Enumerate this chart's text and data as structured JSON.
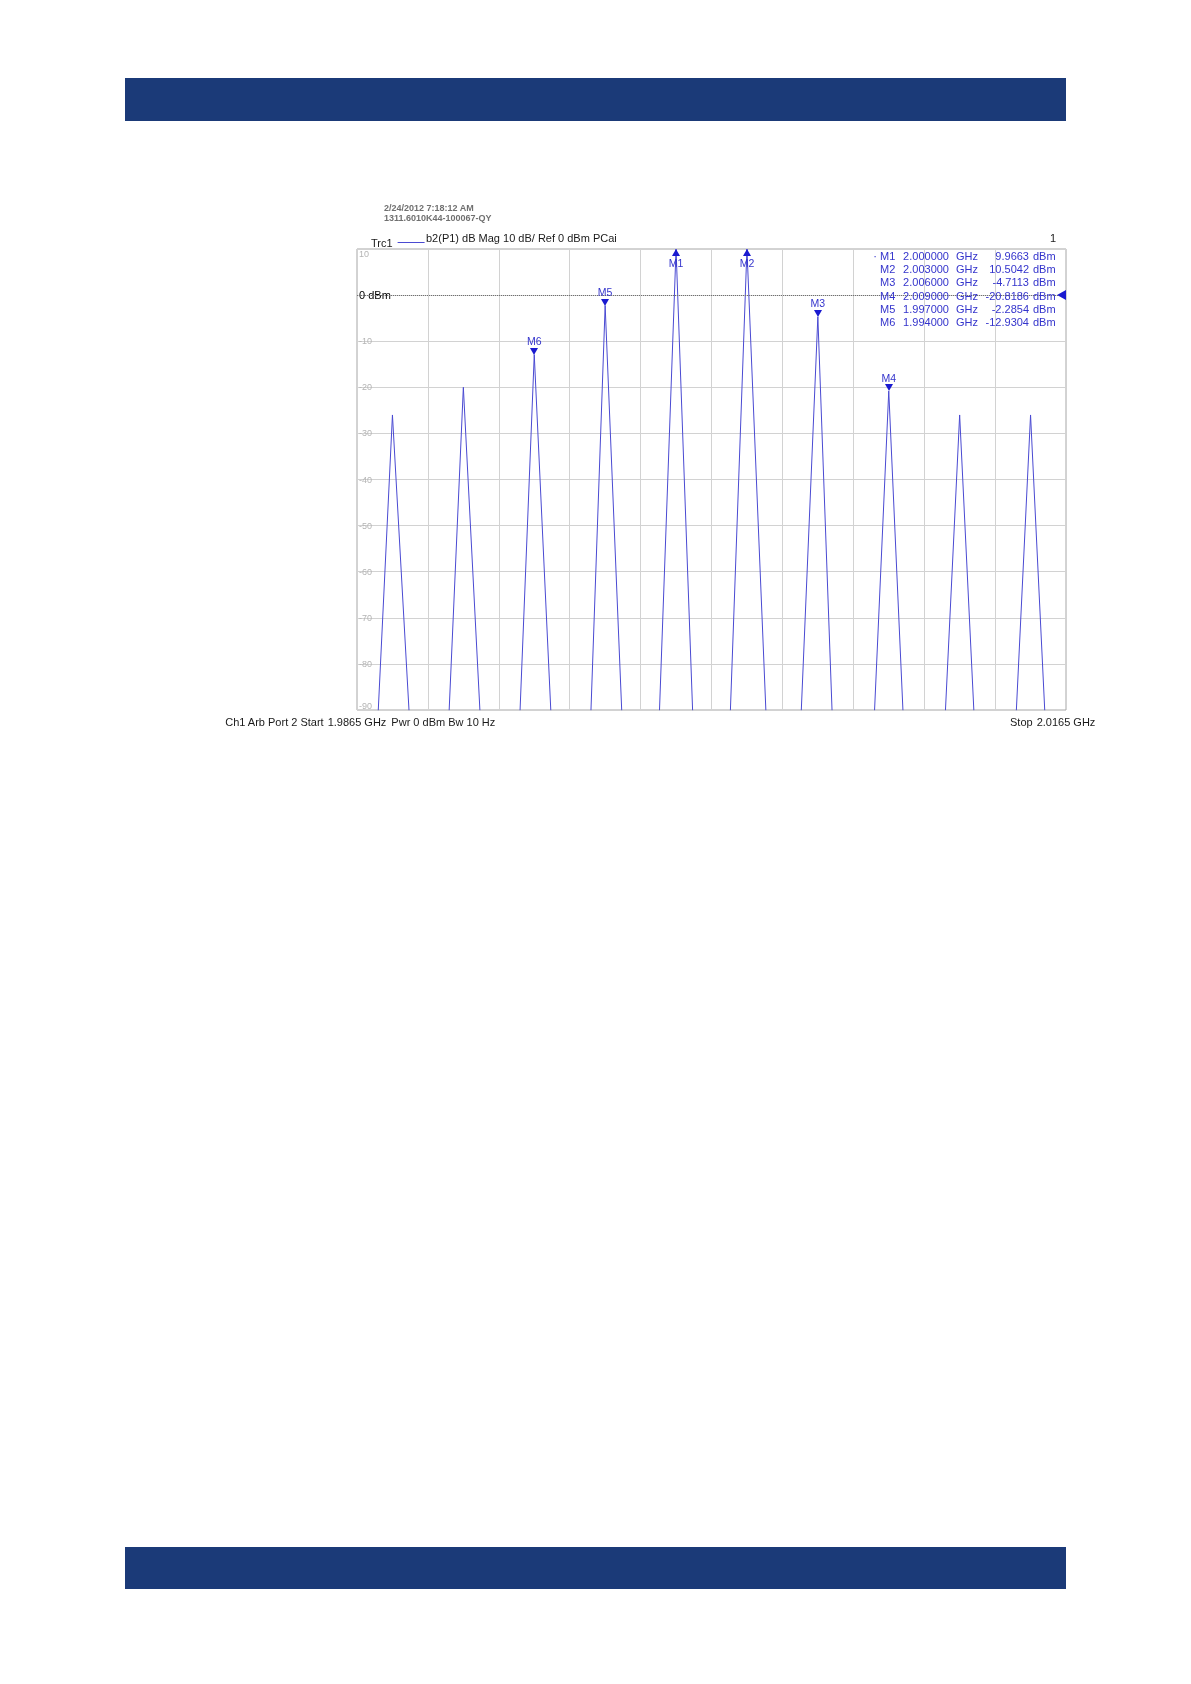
{
  "chart_data": {
    "type": "line",
    "x": [
      1.9874,
      1.988,
      1.9887,
      1.9895,
      1.9904,
      1.991,
      1.9917,
      1.9925,
      1.9934,
      1.994,
      1.9947,
      1.9955,
      1.9964,
      1.997,
      1.9977,
      1.9985,
      1.9993,
      2.0,
      2.0007,
      2.0015,
      2.0023,
      2.003,
      2.0038,
      2.0045,
      2.0053,
      2.006,
      2.0066,
      2.0075,
      2.0084,
      2.009,
      2.0096,
      2.0105,
      2.0114,
      2.012,
      2.0126,
      2.0135,
      2.0144,
      2.015,
      2.0156
    ],
    "series": [
      {
        "name": "Trc1",
        "color": "#4a4ad2",
        "values": [
          -90,
          -26,
          -90,
          null,
          -90,
          -20,
          -90,
          null,
          -90,
          -12.9304,
          -90,
          null,
          -90,
          -2.2854,
          -90,
          null,
          -90,
          9.9663,
          -90,
          null,
          -90,
          10,
          -90,
          null,
          -90,
          -4.7113,
          -90,
          null,
          -90,
          -20.8186,
          -90,
          null,
          -90,
          -26,
          -90,
          null,
          -90,
          -26,
          -90
        ]
      }
    ],
    "xlim": [
      1.9865,
      2.0165
    ],
    "xticks": [
      {
        "value": 1.9865,
        "label": "1.9865 GHz"
      },
      {
        "value": 1.9895,
        "label": null
      },
      {
        "value": 1.9925,
        "label": null
      },
      {
        "value": 1.9955,
        "label": null
      },
      {
        "value": 1.9985,
        "label": null
      },
      {
        "value": 2.0015,
        "label": null
      },
      {
        "value": 2.0045,
        "label": null
      },
      {
        "value": 2.0075,
        "label": null
      },
      {
        "value": 2.0105,
        "label": null
      },
      {
        "value": 2.0135,
        "label": null
      },
      {
        "value": 2.0165,
        "label": "2.0165 GHz"
      }
    ],
    "ylim": [
      -90,
      10
    ],
    "yticks": [
      -90,
      -80,
      -70,
      -60,
      -50,
      -40,
      -30,
      -20,
      -10,
      {
        "value": 0,
        "label": "0 dBm"
      },
      10
    ],
    "grid": true,
    "legend": "top left",
    "marker": "none",
    "ref_lines": [
      {
        "axis": "y",
        "value": 0,
        "color": "#707070",
        "line_style": "dotted"
      }
    ],
    "annotations": [
      "2/24/2012 7:18:12 AM",
      "1311.6010K44-100067-QY",
      "b2(P1) dB Mag 10 dB/ Ref 0 dBm PCai",
      "1",
      "· M1 2.000000 GHz 9.9663 dBm",
      "M2 2.003000 GHz 10.5042 dBm",
      "M3 2.006000 GHz -4.7113 dBm",
      "M4 2.009000 GHz -20.8186 dBm",
      "M5 1.997000 GHz -2.2854 dBm",
      "M6 1.994000 GHz -12.9304 dBm",
      "Ch1 Arb Port 2 Start",
      "Pwr 0 dBm Bw 10 Hz",
      "Stop",
      {
        "text": "M1",
        "x": 2.0,
        "y": 9.9663
      },
      {
        "text": "M2",
        "x": 2.003
      },
      {
        "text": "M3",
        "x": 2.006,
        "y": -4.7113
      },
      {
        "text": "M4",
        "x": 2.009,
        "y": -20.8186
      },
      {
        "text": "M5",
        "x": 1.997,
        "y": -2.2854
      },
      {
        "text": "M6",
        "x": 1.994,
        "y": -12.9304
      }
    ]
  }
}
